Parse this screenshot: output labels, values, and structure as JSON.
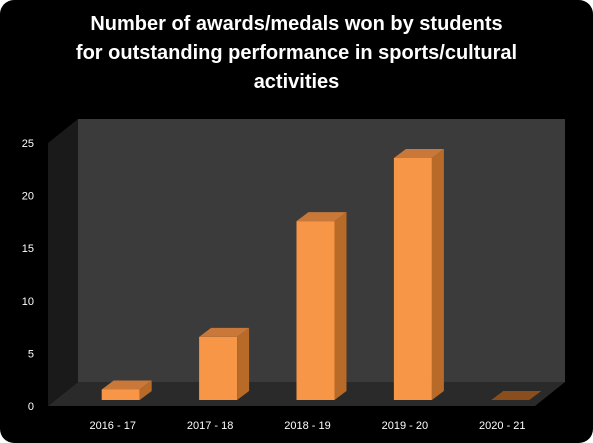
{
  "chart_data": {
    "type": "bar",
    "title_lines": [
      "Number of awards/medals won by students",
      "for outstanding performance in sports/cultural",
      "activities"
    ],
    "categories": [
      "2016 - 17",
      "2017 - 18",
      "2018 - 19",
      "2019 - 20",
      "2020 - 21"
    ],
    "values": [
      1,
      6,
      17,
      23,
      0
    ],
    "y_ticks": [
      "0",
      "5",
      "10",
      "15",
      "20",
      "25"
    ],
    "ylim": [
      0,
      25
    ],
    "grid": false,
    "legend": "none",
    "colors": {
      "background": "#000000",
      "wall": "#3b3b3b",
      "floor": "#2a2a2a",
      "bar_front": "#f79646",
      "bar_side": "#b86a28",
      "bar_top": "#c9783a",
      "text": "#ffffff"
    }
  }
}
